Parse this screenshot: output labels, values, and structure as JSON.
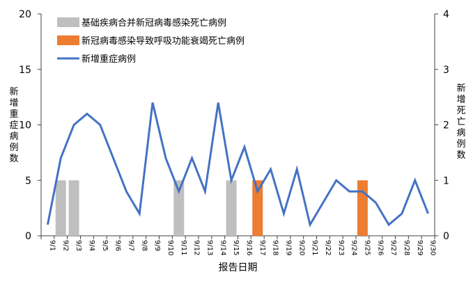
{
  "chart_data": {
    "type": "bar+line",
    "x": [
      "9/1",
      "9/2",
      "9/3",
      "9/4",
      "9/5",
      "9/6",
      "9/7",
      "9/8",
      "9/9",
      "9/10",
      "9/11",
      "9/12",
      "9/13",
      "9/14",
      "9/15",
      "9/16",
      "9/17",
      "9/18",
      "9/19",
      "9/20",
      "9/21",
      "9/22",
      "9/23",
      "9/24",
      "9/25",
      "9/26",
      "9/27",
      "9/28",
      "9/29",
      "9/30"
    ],
    "xlabel": "报告日期",
    "ylabel_left": "新增重症病例数",
    "ylabel_right": "新增死亡病例数",
    "ylim_left": [
      0,
      20
    ],
    "ylim_right": [
      0,
      4
    ],
    "yticks_left": [
      0,
      5,
      10,
      15,
      20
    ],
    "yticks_right": [
      0,
      1,
      2,
      3,
      4
    ],
    "series": [
      {
        "name": "基础疾病合并新冠病毒感染死亡病例",
        "type": "bar",
        "axis": "right",
        "color": "#BFBFBF",
        "values": [
          0,
          1,
          1,
          0,
          0,
          0,
          0,
          0,
          0,
          0,
          1,
          0,
          0,
          0,
          1,
          0,
          0,
          0,
          0,
          0,
          0,
          0,
          0,
          0,
          0,
          0,
          0,
          0,
          0,
          0
        ]
      },
      {
        "name": "新冠病毒感染导致呼吸功能衰竭死亡病例",
        "type": "bar",
        "axis": "right",
        "color": "#ED7D31",
        "values": [
          0,
          0,
          0,
          0,
          0,
          0,
          0,
          0,
          0,
          0,
          0,
          0,
          0,
          0,
          0,
          0,
          1,
          0,
          0,
          0,
          0,
          0,
          0,
          0,
          1,
          0,
          0,
          0,
          0,
          0
        ]
      },
      {
        "name": "新增重症病例",
        "type": "line",
        "axis": "left",
        "color": "#4472C4",
        "values": [
          1,
          7,
          10,
          11,
          10,
          7,
          4,
          2,
          12,
          7,
          4,
          7,
          4,
          12,
          5,
          8,
          4,
          6,
          2,
          6,
          1,
          3,
          5,
          4,
          4,
          3,
          1,
          2,
          5,
          2
        ]
      }
    ],
    "legend_position": "top-left",
    "grid": false
  }
}
